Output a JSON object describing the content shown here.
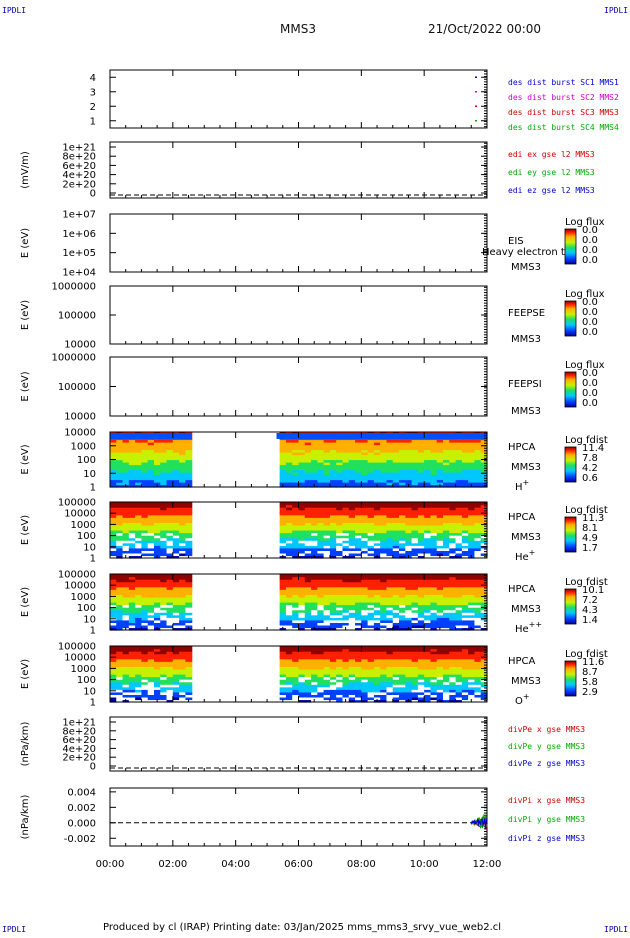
{
  "corners": {
    "tl": "IPDLI",
    "tr": "IPDLI",
    "bl": "IPDLI",
    "br": "IPDLI"
  },
  "header": {
    "spacecraft": "MMS3",
    "date": "21/Oct/2022 00:00"
  },
  "footer": {
    "text": "Produced by cl (IRAP)   Printing date: 03/Jan/2025   mms_mms3_srvy_vue_web2.cl"
  },
  "colors": {
    "bar_start": "#7a0000",
    "bar_end": "#0000c0"
  },
  "chart_data": [
    {
      "id": "burst",
      "type": "line",
      "ylim": [
        0.5,
        4.5
      ],
      "yticks": [
        "4",
        "3",
        "2",
        "1"
      ],
      "series": [
        {
          "name": "des dist burst SC1 MMS1",
          "color": "#0000cc",
          "value": 4
        },
        {
          "name": "des dist burst SC2 MMS2",
          "color": "#cc00cc",
          "value": 3
        },
        {
          "name": "des dist burst SC3 MMS3",
          "color": "#cc0000",
          "value": 2
        },
        {
          "name": "des dist burst SC4 MMS4",
          "color": "#00aa00",
          "value": 1
        }
      ]
    },
    {
      "id": "edi",
      "type": "line",
      "ylabel": "(mV/m)",
      "yticks": [
        "1e+21",
        "8e+20",
        "6e+20",
        "4e+20",
        "2e+20",
        "0"
      ],
      "series": [
        {
          "name": "edi ex gse l2 MMS3",
          "color": "#cc0000"
        },
        {
          "name": "edi ey gse l2 MMS3",
          "color": "#00aa00"
        },
        {
          "name": "edi ez gse l2 MMS3",
          "color": "#0000cc"
        }
      ]
    },
    {
      "id": "eis",
      "type": "heatmap",
      "ylabel": "E (eV)",
      "yscale": "log",
      "yticks": [
        "1e+07",
        "1e+06",
        "1e+05",
        "1e+04"
      ],
      "side": [
        "EIS",
        "MMS3"
      ],
      "overlay": "Heavy electron to",
      "colorbar": {
        "title": "Log flux",
        "values": [
          "0.0",
          "0.0",
          "0.0",
          "0.0"
        ]
      }
    },
    {
      "id": "feepse",
      "type": "heatmap",
      "ylabel": "E (eV)",
      "yscale": "log",
      "yticks": [
        "1000000",
        "100000",
        "10000"
      ],
      "side": [
        "FEEPSE",
        "MMS3"
      ],
      "colorbar": {
        "title": "Log flux",
        "values": [
          "0.0",
          "0.0",
          "0.0",
          "0.0"
        ]
      }
    },
    {
      "id": "feepsi",
      "type": "heatmap",
      "ylabel": "E (eV)",
      "yscale": "log",
      "yticks": [
        "1000000",
        "100000",
        "10000"
      ],
      "side": [
        "FEEPSI",
        "MMS3"
      ],
      "colorbar": {
        "title": "Log flux",
        "values": [
          "0.0",
          "0.0",
          "0.0",
          "0.0"
        ]
      }
    },
    {
      "id": "hpca_h",
      "type": "heatmap",
      "ylabel": "E (eV)",
      "yscale": "log",
      "yticks": [
        "10000",
        "1000",
        "100",
        "10",
        "1"
      ],
      "side": [
        "HPCA",
        "MMS3"
      ],
      "species": "H",
      "charge": "+",
      "data_gap_hours": [
        2.6,
        5.3
      ],
      "colorbar": {
        "title": "Log fdist",
        "values": [
          "11.4",
          "7.8",
          "4.2",
          "0.6"
        ]
      }
    },
    {
      "id": "hpca_he",
      "type": "heatmap",
      "ylabel": "E (eV)",
      "yscale": "log",
      "yticks": [
        "100000",
        "10000",
        "1000",
        "100",
        "10",
        "1"
      ],
      "side": [
        "HPCA",
        "MMS3"
      ],
      "species": "He",
      "charge": "+",
      "data_gap_hours": [
        2.6,
        5.3
      ],
      "colorbar": {
        "title": "Log fdist",
        "values": [
          "11.3",
          "8.1",
          "4.9",
          "1.7"
        ]
      }
    },
    {
      "id": "hpca_hepp",
      "type": "heatmap",
      "ylabel": "E (eV)",
      "yscale": "log",
      "yticks": [
        "100000",
        "10000",
        "1000",
        "100",
        "10",
        "1"
      ],
      "side": [
        "HPCA",
        "MMS3"
      ],
      "species": "He",
      "charge": "++",
      "data_gap_hours": [
        2.6,
        5.3
      ],
      "colorbar": {
        "title": "Log fdist",
        "values": [
          "10.1",
          "7.2",
          "4.3",
          "1.4"
        ]
      }
    },
    {
      "id": "hpca_o",
      "type": "heatmap",
      "ylabel": "E (eV)",
      "yscale": "log",
      "yticks": [
        "100000",
        "10000",
        "1000",
        "100",
        "10",
        "1"
      ],
      "side": [
        "HPCA",
        "MMS3"
      ],
      "species": "O",
      "charge": "+",
      "data_gap_hours": [
        2.6,
        5.3
      ],
      "colorbar": {
        "title": "Log fdist",
        "values": [
          "11.6",
          "8.7",
          "5.8",
          "2.9"
        ]
      }
    },
    {
      "id": "divpe",
      "type": "line",
      "ylabel": "(nPa/km)",
      "yticks": [
        "1e+21",
        "8e+20",
        "6e+20",
        "4e+20",
        "2e+20",
        "0"
      ],
      "series": [
        {
          "name": "divPe x gse MMS3",
          "color": "#cc0000"
        },
        {
          "name": "divPe y gse MMS3",
          "color": "#00aa00"
        },
        {
          "name": "divPe z gse MMS3",
          "color": "#0000cc"
        }
      ]
    },
    {
      "id": "divpi",
      "type": "line",
      "ylabel": "(nPa/km)",
      "ylim": [
        -0.003,
        0.0045
      ],
      "yticks": [
        "0.004",
        "0.002",
        "0.000",
        "-0.002"
      ],
      "ytick_values": [
        0.004,
        0.002,
        0.0,
        -0.002
      ],
      "x_hours_active": [
        11.5,
        12.0
      ],
      "series": [
        {
          "name": "divPi x gse MMS3",
          "color": "#cc0000"
        },
        {
          "name": "divPi y gse MMS3",
          "color": "#00aa00"
        },
        {
          "name": "divPi z gse MMS3",
          "color": "#0000cc"
        }
      ]
    }
  ],
  "xaxis": {
    "range_hours": [
      0,
      12
    ],
    "ticks": [
      "00:00",
      "02:00",
      "04:00",
      "06:00",
      "08:00",
      "10:00",
      "12:00"
    ]
  }
}
